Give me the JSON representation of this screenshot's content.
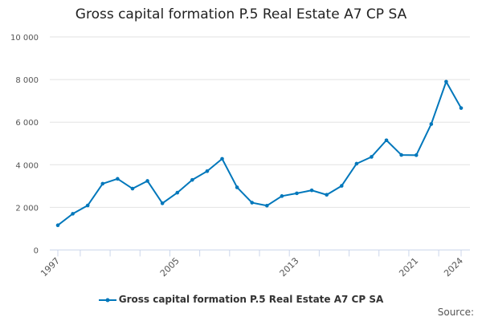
{
  "chart_data": {
    "type": "line",
    "title": "Gross capital formation P.5 Real Estate A7 CP SA",
    "xlabel": "",
    "ylabel": "",
    "ylim": [
      0,
      10000
    ],
    "yticks": [
      "0",
      "2 000",
      "4 000",
      "6 000",
      "8 000",
      "10 000"
    ],
    "ytick_values": [
      0,
      2000,
      4000,
      6000,
      8000,
      10000
    ],
    "xtick_labels": [
      "1997",
      "2005",
      "2013",
      "2021",
      "2024"
    ],
    "grid": "horizontal",
    "legend_position": "bottom",
    "color": "#0077bb",
    "x": [
      1997,
      1998,
      1999,
      2000,
      2001,
      2002,
      2003,
      2004,
      2005,
      2006,
      2007,
      2008,
      2009,
      2010,
      2011,
      2012,
      2013,
      2014,
      2015,
      2016,
      2017,
      2018,
      2019,
      2020,
      2021,
      2022,
      2023,
      2024
    ],
    "series": [
      {
        "name": "Gross capital formation P.5 Real Estate A7 CP SA",
        "values": [
          1160,
          1700,
          2090,
          3110,
          3340,
          2880,
          3240,
          2190,
          2690,
          3290,
          3700,
          4280,
          2940,
          2220,
          2080,
          2530,
          2660,
          2800,
          2590,
          3010,
          4050,
          4370,
          5150,
          4460,
          4450,
          5910,
          7900,
          6660
        ]
      }
    ]
  },
  "source_label": "Source:"
}
